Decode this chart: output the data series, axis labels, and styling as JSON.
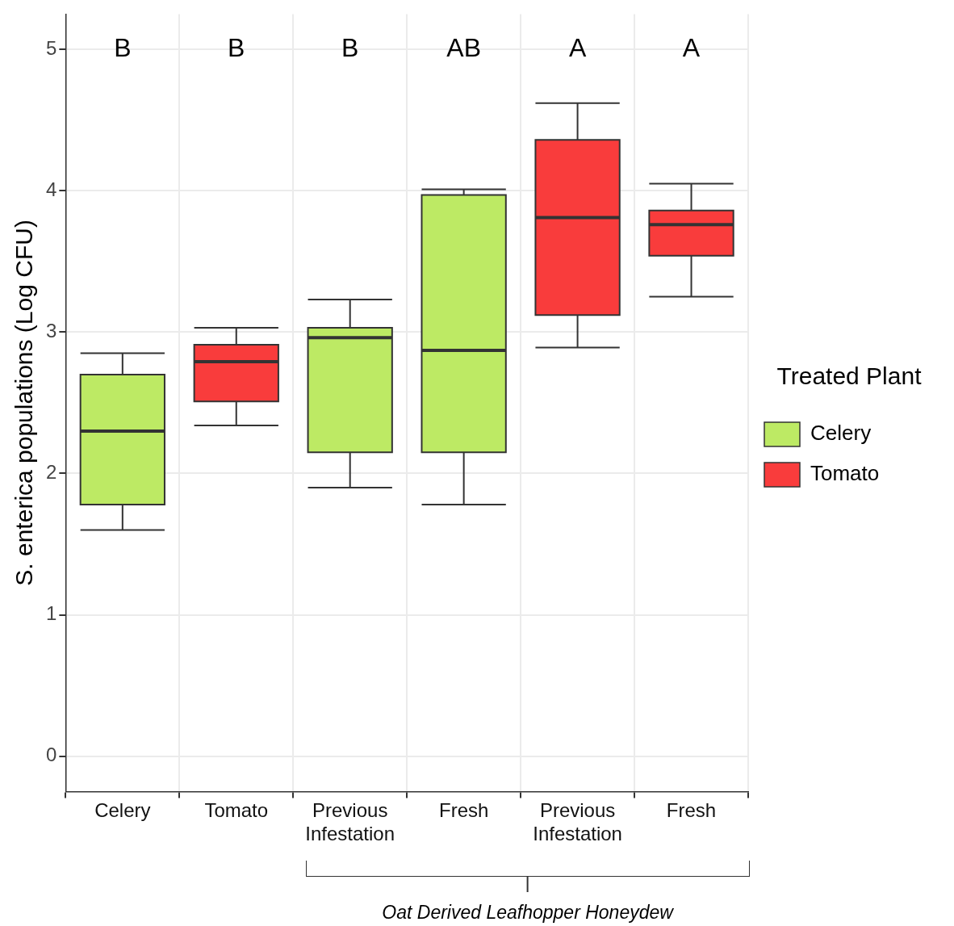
{
  "chart_data": {
    "type": "box",
    "ylabel": "S. enterica populations (Log CFU)",
    "legend_title": "Treated Plant",
    "legend": "right",
    "grid": true,
    "categories": [
      "Celery",
      "Tomato",
      "Previous Infestation",
      "Fresh",
      "Previous Infestation",
      "Fresh"
    ],
    "ylim": [
      -0.25,
      5.25
    ],
    "yticks": [
      0,
      1,
      2,
      3,
      4,
      5
    ],
    "series": [
      {
        "name": "Celery",
        "color": "#bdea64",
        "boxes": [
          {
            "low": 1.6,
            "q1": 1.78,
            "median": 2.3,
            "q3": 2.7,
            "high": 2.85
          },
          null,
          {
            "low": 1.9,
            "q1": 2.15,
            "median": 2.96,
            "q3": 3.03,
            "high": 3.23
          },
          {
            "low": 1.78,
            "q1": 2.15,
            "median": 2.87,
            "q3": 3.97,
            "high": 4.01
          },
          null,
          null
        ]
      },
      {
        "name": "Tomato",
        "color": "#f93c3c",
        "boxes": [
          null,
          {
            "low": 2.34,
            "q1": 2.51,
            "median": 2.79,
            "q3": 2.91,
            "high": 3.03
          },
          null,
          null,
          {
            "low": 2.89,
            "q1": 3.12,
            "median": 3.81,
            "q3": 4.36,
            "high": 4.62
          },
          {
            "low": 3.25,
            "q1": 3.54,
            "median": 3.76,
            "q3": 3.86,
            "high": 4.05
          }
        ]
      }
    ],
    "annotations": [
      "B",
      "B",
      "B",
      "AB",
      "A",
      "A",
      "Oat Derived Leafhopper Honeydew"
    ]
  }
}
